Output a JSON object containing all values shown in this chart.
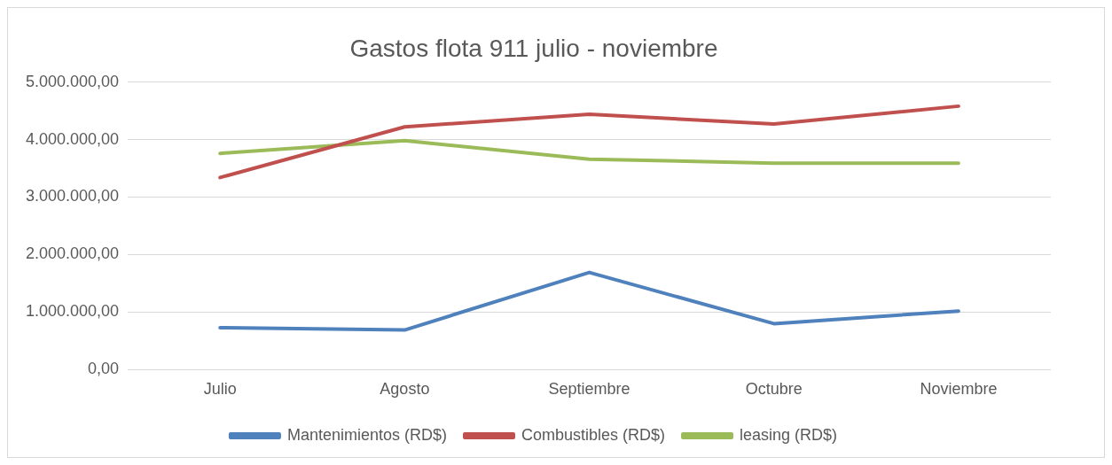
{
  "chart_data": {
    "type": "line",
    "title": "Gastos flota 911 julio - noviembre",
    "categories": [
      "Julio",
      "Agosto",
      "Septiembre",
      "Octubre",
      "Noviembre"
    ],
    "series": [
      {
        "name": "Mantenimientos (RD$)",
        "color": "#4f81bd",
        "values": [
          730000,
          690000,
          1690000,
          800000,
          1020000
        ]
      },
      {
        "name": "Combustibles (RD$)",
        "color": "#c0504d",
        "values": [
          3340000,
          4220000,
          4440000,
          4270000,
          4580000
        ]
      },
      {
        "name": "leasing (RD$)",
        "color": "#9bbb59",
        "values": [
          3760000,
          3980000,
          3660000,
          3590000,
          3590000
        ]
      }
    ],
    "ylim": [
      0,
      5000000
    ],
    "yticks": [
      {
        "value": 0,
        "label": "0,00"
      },
      {
        "value": 1000000,
        "label": "1.000.000,00"
      },
      {
        "value": 2000000,
        "label": "2.000.000,00"
      },
      {
        "value": 3000000,
        "label": "3.000.000,00"
      },
      {
        "value": 4000000,
        "label": "4.000.000,00"
      },
      {
        "value": 5000000,
        "label": "5.000.000,00"
      }
    ],
    "grid": "y",
    "legend": "bottom",
    "marker": "none",
    "line_style": "solid"
  }
}
